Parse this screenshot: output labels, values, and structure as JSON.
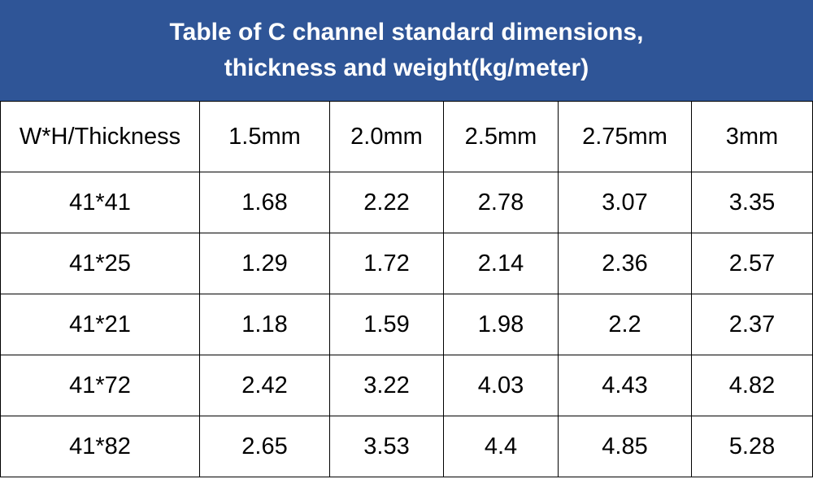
{
  "header": {
    "title_lines": [
      "Table of C channel standard dimensions,",
      "thickness and weight(kg/meter)"
    ]
  },
  "table": {
    "columns": [
      "W*H/Thickness",
      "1.5mm",
      "2.0mm",
      "2.5mm",
      "2.75mm",
      "3mm"
    ],
    "rows": [
      [
        "41*41",
        "1.68",
        "2.22",
        "2.78",
        "3.07",
        "3.35"
      ],
      [
        "41*25",
        "1.29",
        "1.72",
        "2.14",
        "2.36",
        "2.57"
      ],
      [
        "41*21",
        "1.18",
        "1.59",
        "1.98",
        "2.2",
        "2.37"
      ],
      [
        "41*72",
        "2.42",
        "3.22",
        "4.03",
        "4.43",
        "4.82"
      ],
      [
        "41*82",
        "2.65",
        "3.53",
        "4.4",
        "4.85",
        "5.28"
      ]
    ]
  }
}
